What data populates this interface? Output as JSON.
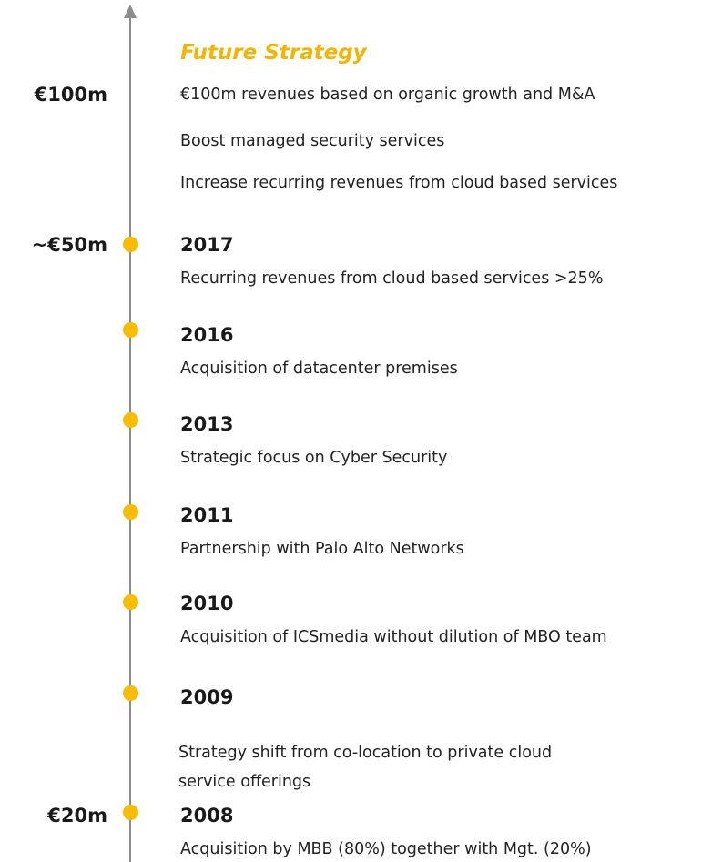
{
  "future": {
    "title": "Future Strategy",
    "items": [
      "€100m revenues based on organic growth and M&A",
      "Boost managed security services",
      "Increase recurring revenues from cloud based services"
    ]
  },
  "milestones": [
    {
      "label": "€100m"
    },
    {
      "label": "~€50m"
    },
    {
      "label": "€20m"
    }
  ],
  "events": [
    {
      "year": "2017",
      "lines": [
        "Recurring revenues from cloud based services >25%"
      ]
    },
    {
      "year": "2016",
      "lines": [
        "Acquisition of datacenter premises"
      ]
    },
    {
      "year": "2013",
      "lines": [
        "Strategic focus on Cyber Security"
      ]
    },
    {
      "year": "2011",
      "lines": [
        "Partnership with Palo Alto Networks"
      ]
    },
    {
      "year": "2010",
      "lines": [
        "Acquisition of ICSmedia without dilution of MBO team"
      ]
    },
    {
      "year": "2009",
      "lines": [
        "Strategy shift from co-location to private cloud",
        "service offerings"
      ]
    },
    {
      "year": "2008",
      "lines": [
        "Acquisition by MBB (80%) together with Mgt. (20%)"
      ]
    }
  ]
}
